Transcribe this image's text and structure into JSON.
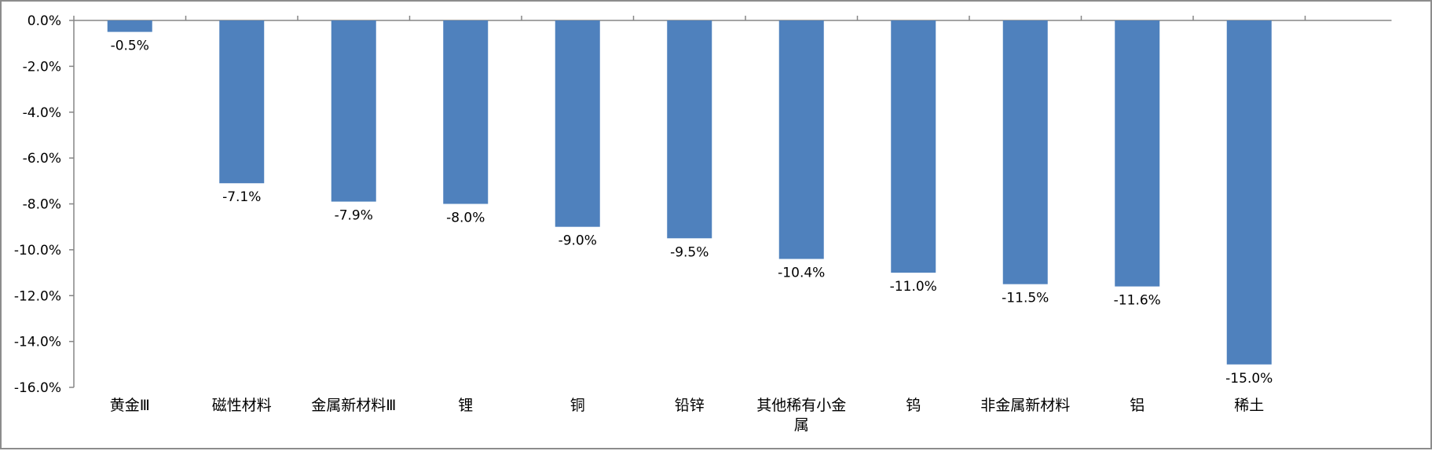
{
  "chart_data": {
    "type": "bar",
    "categories": [
      "黄金Ⅲ",
      "磁性材料",
      "金属新材料Ⅲ",
      "锂",
      "铜",
      "铅锌",
      "其他稀有小金属",
      "钨",
      "非金属新材料",
      "铝",
      "稀土"
    ],
    "values": [
      -0.5,
      -7.1,
      -7.9,
      -8.0,
      -9.0,
      -9.5,
      -10.4,
      -11.0,
      -11.5,
      -11.6,
      -15.0
    ],
    "data_labels": [
      "-0.5%",
      "-7.1%",
      "-7.9%",
      "-8.0%",
      "-9.0%",
      "-9.5%",
      "-10.4%",
      "-11.0%",
      "-11.5%",
      "-11.6%",
      "-15.0%"
    ],
    "y_ticks": [
      "0.0%",
      "-2.0%",
      "-4.0%",
      "-6.0%",
      "-8.0%",
      "-10.0%",
      "-12.0%",
      "-14.0%",
      "-16.0%"
    ],
    "y_tick_values": [
      0,
      -2,
      -4,
      -6,
      -8,
      -10,
      -12,
      -14,
      -16
    ],
    "ylim": [
      -16,
      0
    ],
    "title": "",
    "xlabel": "",
    "ylabel": "",
    "grid": false,
    "legend": "none",
    "bar_color": "#4f81bd",
    "axis_color": "#868686"
  }
}
